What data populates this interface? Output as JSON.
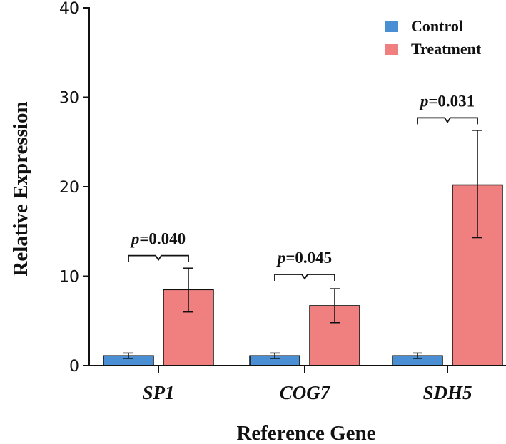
{
  "chart_data": {
    "type": "bar",
    "title": "",
    "xlabel": "Reference Gene",
    "ylabel": "Relative Expression",
    "ylim": [
      0,
      40
    ],
    "yticks": [
      "0",
      "10",
      "20",
      "30",
      "40"
    ],
    "categories": [
      "SP1",
      "COG7",
      "SDH5"
    ],
    "series": [
      {
        "name": "Control",
        "color": "#4a8fd4",
        "values": [
          1.1,
          1.1,
          1.1
        ],
        "err_low": [
          0.8,
          0.8,
          0.8
        ],
        "err_high": [
          1.4,
          1.4,
          1.4
        ]
      },
      {
        "name": "Treatment",
        "color": "#f08080",
        "values": [
          8.5,
          6.7,
          20.2
        ],
        "err_low": [
          6.0,
          4.8,
          14.3
        ],
        "err_high": [
          10.9,
          8.6,
          26.3
        ]
      }
    ],
    "annotations": [
      {
        "category": "SP1",
        "prefix": "p",
        "text": "=0.040",
        "y": 12.3
      },
      {
        "category": "COG7",
        "prefix": "p",
        "text": "=0.045",
        "y": 10.2
      },
      {
        "category": "SDH5",
        "prefix": "p",
        "text": "=0.031",
        "y": 27.7
      }
    ],
    "legend": "top-right"
  }
}
